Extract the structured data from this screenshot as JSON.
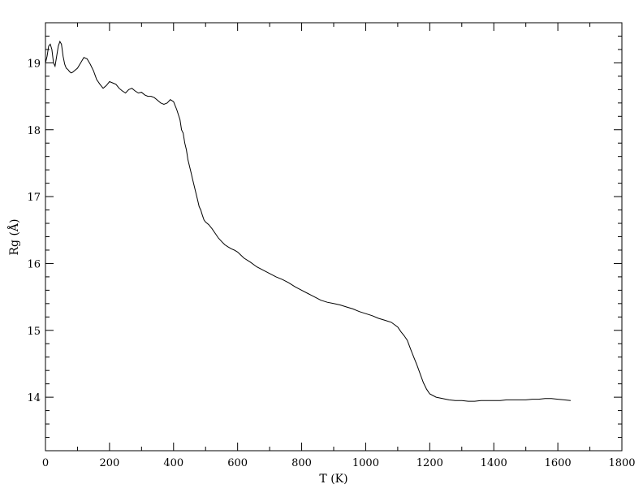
{
  "chart_data": {
    "type": "line",
    "title": "",
    "xlabel": "T (K)",
    "ylabel": "Rg (Å)",
    "xlim": [
      0,
      1800
    ],
    "ylim": [
      13.2,
      19.6
    ],
    "xticks": [
      0,
      200,
      400,
      600,
      800,
      1000,
      1200,
      1400,
      1600,
      1800
    ],
    "yticks": [
      14,
      15,
      16,
      17,
      18,
      19
    ],
    "grid": false,
    "legend": "none",
    "line_color": "#000000",
    "series": [
      {
        "x": [
          0,
          5,
          10,
          15,
          20,
          25,
          30,
          35,
          40,
          45,
          50,
          55,
          60,
          65,
          70,
          75,
          80,
          85,
          90,
          100,
          110,
          120,
          130,
          140,
          150,
          160,
          170,
          180,
          190,
          200,
          210,
          220,
          230,
          240,
          250,
          260,
          270,
          280,
          290,
          300,
          310,
          320,
          330,
          340,
          350,
          360,
          370,
          380,
          390,
          400,
          410,
          420,
          425,
          430,
          435,
          440,
          445,
          450,
          455,
          460,
          465,
          470,
          475,
          480,
          485,
          490,
          495,
          500,
          510,
          520,
          530,
          540,
          550,
          560,
          570,
          580,
          590,
          600,
          620,
          640,
          660,
          680,
          700,
          720,
          740,
          760,
          780,
          800,
          820,
          840,
          860,
          880,
          900,
          920,
          940,
          960,
          980,
          1000,
          1020,
          1040,
          1060,
          1080,
          1100,
          1110,
          1120,
          1130,
          1140,
          1150,
          1160,
          1170,
          1180,
          1190,
          1200,
          1220,
          1240,
          1260,
          1280,
          1300,
          1320,
          1340,
          1360,
          1380,
          1400,
          1420,
          1440,
          1460,
          1480,
          1500,
          1520,
          1540,
          1560,
          1580,
          1600,
          1620,
          1640
        ],
        "y": [
          19.0,
          19.1,
          19.25,
          19.28,
          19.2,
          19.0,
          18.95,
          19.1,
          19.25,
          19.32,
          19.28,
          19.1,
          18.98,
          18.92,
          18.9,
          18.87,
          18.85,
          18.86,
          18.88,
          18.92,
          19.0,
          19.08,
          19.06,
          18.98,
          18.88,
          18.75,
          18.68,
          18.62,
          18.66,
          18.72,
          18.7,
          18.68,
          18.62,
          18.58,
          18.55,
          18.6,
          18.62,
          18.58,
          18.55,
          18.56,
          18.52,
          18.5,
          18.5,
          18.48,
          18.44,
          18.4,
          18.38,
          18.4,
          18.45,
          18.42,
          18.3,
          18.15,
          18.0,
          17.95,
          17.8,
          17.7,
          17.55,
          17.45,
          17.35,
          17.25,
          17.15,
          17.05,
          16.95,
          16.85,
          16.8,
          16.72,
          16.65,
          16.62,
          16.58,
          16.52,
          16.45,
          16.38,
          16.33,
          16.28,
          16.25,
          16.22,
          16.2,
          16.17,
          16.08,
          16.02,
          15.95,
          15.9,
          15.85,
          15.8,
          15.76,
          15.71,
          15.65,
          15.6,
          15.55,
          15.5,
          15.45,
          15.42,
          15.4,
          15.38,
          15.35,
          15.32,
          15.28,
          15.25,
          15.22,
          15.18,
          15.15,
          15.12,
          15.05,
          14.98,
          14.92,
          14.85,
          14.72,
          14.6,
          14.48,
          14.35,
          14.22,
          14.12,
          14.05,
          14.0,
          13.98,
          13.96,
          13.95,
          13.95,
          13.94,
          13.94,
          13.95,
          13.95,
          13.95,
          13.95,
          13.96,
          13.96,
          13.96,
          13.96,
          13.97,
          13.97,
          13.98,
          13.98,
          13.97,
          13.96,
          13.95
        ]
      }
    ]
  }
}
